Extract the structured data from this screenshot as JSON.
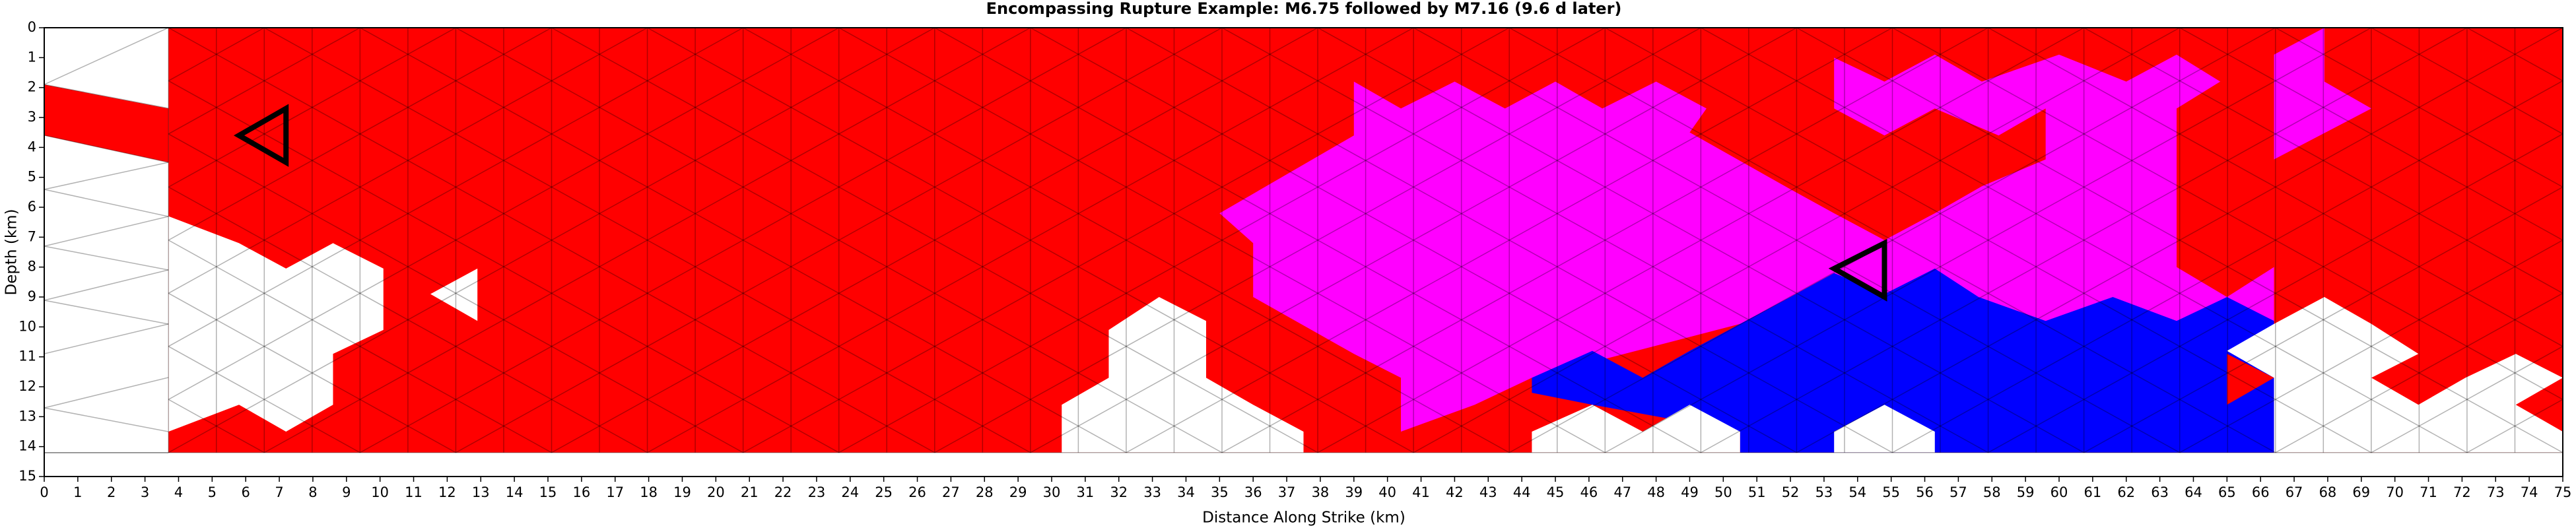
{
  "chart_data": {
    "type": "mesh",
    "title": "Encompassing Rupture Example: M6.75 followed by M7.16 (9.6 d later)",
    "xlabel": "Distance Along Strike (km)",
    "ylabel": "Depth (km)",
    "xlim": [
      0,
      75
    ],
    "ylim": [
      15,
      0
    ],
    "xticks": [
      0,
      1,
      2,
      3,
      4,
      5,
      6,
      7,
      8,
      9,
      10,
      11,
      12,
      13,
      14,
      15,
      16,
      17,
      18,
      19,
      20,
      21,
      22,
      23,
      24,
      25,
      26,
      27,
      28,
      29,
      30,
      31,
      32,
      33,
      34,
      35,
      36,
      37,
      38,
      39,
      40,
      41,
      42,
      43,
      44,
      45,
      46,
      47,
      48,
      49,
      50,
      51,
      52,
      53,
      54,
      55,
      56,
      57,
      58,
      59,
      60,
      61,
      62,
      63,
      64,
      65,
      66,
      67,
      68,
      69,
      70,
      71,
      72,
      73,
      74,
      75
    ],
    "yticks": [
      0,
      1,
      2,
      3,
      4,
      5,
      6,
      7,
      8,
      9,
      10,
      11,
      12,
      13,
      14,
      15
    ],
    "mesh": {
      "xlim": [
        3.7,
        75
      ],
      "ylim": [
        0,
        14.2
      ],
      "columns": 50,
      "rows": 8,
      "color": "#000000"
    },
    "regions": [
      {
        "color": "#ff0000",
        "x": [
          3.7,
          75,
          75,
          3.7
        ],
        "y": [
          0,
          0,
          14.2,
          14.2
        ]
      },
      {
        "color": "#ff0000",
        "x": [
          0,
          3.7,
          3.7,
          0
        ],
        "y": [
          1.9,
          2.7,
          4.5,
          3.6
        ]
      },
      {
        "color": "#ffffff",
        "x": [
          3.7,
          5.8,
          7.2,
          8.6,
          10.1,
          10.1,
          8.6,
          8.6,
          7.2,
          5.8,
          3.7
        ],
        "y": [
          6.3,
          7.2,
          8.05,
          7.2,
          8.05,
          10.1,
          10.9,
          12.6,
          13.5,
          12.6,
          13.5
        ]
      },
      {
        "color": "#ffffff",
        "x": [
          11.5,
          12.9,
          12.9
        ],
        "y": [
          8.9,
          8.05,
          9.8
        ]
      },
      {
        "color": "#ffffff",
        "x": [
          30.3,
          30.3,
          31.7,
          31.7,
          33.2,
          34.6,
          34.6,
          36.0,
          37.5,
          37.5
        ],
        "y": [
          14.2,
          12.6,
          11.7,
          10.1,
          9.0,
          9.8,
          11.7,
          12.6,
          13.5,
          14.2
        ]
      },
      {
        "color": "#ff00ff",
        "x": [
          35.0,
          39.0,
          39.0,
          40.4,
          42.0,
          43.5,
          45.0,
          46.4,
          48.0,
          49.5,
          49.0,
          52.0,
          53.3,
          54.8,
          56.3,
          57.7,
          59.6,
          59.6,
          58.2,
          56.3,
          54.8,
          53.3,
          53.3,
          54.8,
          56.3,
          57.7,
          60.0,
          62.0,
          63.5,
          64.8,
          63.5,
          63.5,
          65.0,
          66.4,
          66.4,
          59.6,
          54.8,
          50.5,
          44.3,
          42.6,
          40.4,
          40.4,
          39.0,
          36.0,
          36.0
        ],
        "y": [
          6.2,
          3.6,
          1.8,
          2.7,
          1.8,
          2.7,
          1.8,
          2.7,
          1.8,
          2.7,
          3.5,
          5.4,
          6.2,
          7.1,
          6.2,
          5.3,
          4.4,
          2.7,
          3.6,
          2.7,
          3.6,
          2.7,
          1.0,
          1.8,
          0.9,
          1.8,
          0.9,
          1.8,
          0.9,
          1.8,
          2.7,
          8.0,
          9.0,
          8.0,
          9.8,
          9.8,
          9.0,
          9.9,
          11.7,
          12.6,
          13.5,
          11.7,
          10.9,
          9.0,
          7.2
        ]
      },
      {
        "color": "#ff00ff",
        "x": [
          66.4,
          67.9,
          67.9,
          69.3,
          66.4
        ],
        "y": [
          0.9,
          0,
          1.8,
          2.7,
          4.4
        ]
      },
      {
        "color": "#0000ff",
        "x": [
          44.3,
          46.1,
          47.6,
          49.0,
          50.5,
          52.0,
          53.3,
          54.8,
          56.3,
          57.6,
          59.6,
          61.6,
          63.5,
          65.0,
          66.4,
          66.4,
          50.5,
          50.5,
          46.1,
          44.3
        ],
        "y": [
          11.7,
          10.8,
          11.7,
          10.8,
          9.9,
          9.0,
          8.2,
          8.9,
          8.05,
          9.0,
          9.8,
          9.0,
          9.8,
          9.0,
          9.8,
          14.2,
          14.2,
          13.5,
          12.6,
          12.2
        ]
      },
      {
        "color": "#ffffff",
        "x": [
          44.3,
          44.3,
          46.1,
          47.6,
          49.0,
          50.5,
          50.5
        ],
        "y": [
          14.2,
          13.5,
          12.6,
          13.5,
          12.6,
          13.5,
          14.2
        ]
      },
      {
        "color": "#ffffff",
        "x": [
          53.3,
          53.3,
          54.8,
          56.3,
          56.3
        ],
        "y": [
          14.2,
          13.5,
          12.6,
          13.5,
          14.2
        ]
      },
      {
        "color": "#ffffff",
        "x": [
          66.4,
          66.4,
          65.0,
          66.4,
          67.9,
          69.3,
          70.7,
          69.3,
          70.7,
          72.1,
          73.6,
          75,
          73.6,
          75,
          75
        ],
        "y": [
          14.2,
          11.7,
          10.8,
          9.9,
          9.0,
          9.9,
          10.9,
          11.7,
          12.6,
          11.7,
          10.9,
          11.7,
          12.6,
          13.5,
          14.2
        ]
      },
      {
        "color": "#ff0000",
        "x": [
          65.0,
          66.4,
          65.0
        ],
        "y": [
          10.9,
          11.7,
          12.6
        ]
      }
    ],
    "outlines": [
      {
        "color": "#000000",
        "x": [
          5.8,
          7.2,
          7.2
        ],
        "y": [
          3.6,
          2.7,
          4.5
        ]
      },
      {
        "color": "#000000",
        "x": [
          53.3,
          54.8,
          54.8
        ],
        "y": [
          8.05,
          7.2,
          9.0
        ]
      }
    ]
  }
}
